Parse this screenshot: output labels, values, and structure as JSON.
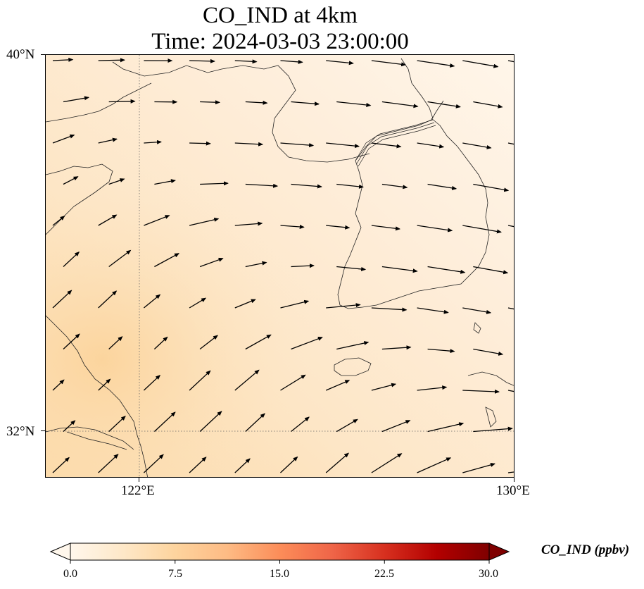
{
  "title": {
    "line1": "CO_IND at 4km",
    "line2": "Time: 2024-03-03 23:00:00"
  },
  "map": {
    "lat_labels": [
      "40°N",
      "32°N"
    ],
    "lon_labels": [
      "122°E",
      "130°E"
    ],
    "lat_range": [
      31,
      40
    ],
    "lon_range": [
      120,
      130
    ],
    "gridlines": "dotted",
    "field": "CO_IND"
  },
  "colorbar": {
    "label": "CO_IND (ppbv)",
    "ticks": [
      "0.0",
      "7.5",
      "15.0",
      "22.5",
      "30.0"
    ],
    "range": [
      0,
      30
    ],
    "extend": "both",
    "colormap": "OrRd",
    "colors": [
      "#fff7ec",
      "#fee8c8",
      "#fdd49e",
      "#fdbb84",
      "#fc8d59",
      "#ef6548",
      "#d7301f",
      "#b30000",
      "#7f0000"
    ]
  }
}
